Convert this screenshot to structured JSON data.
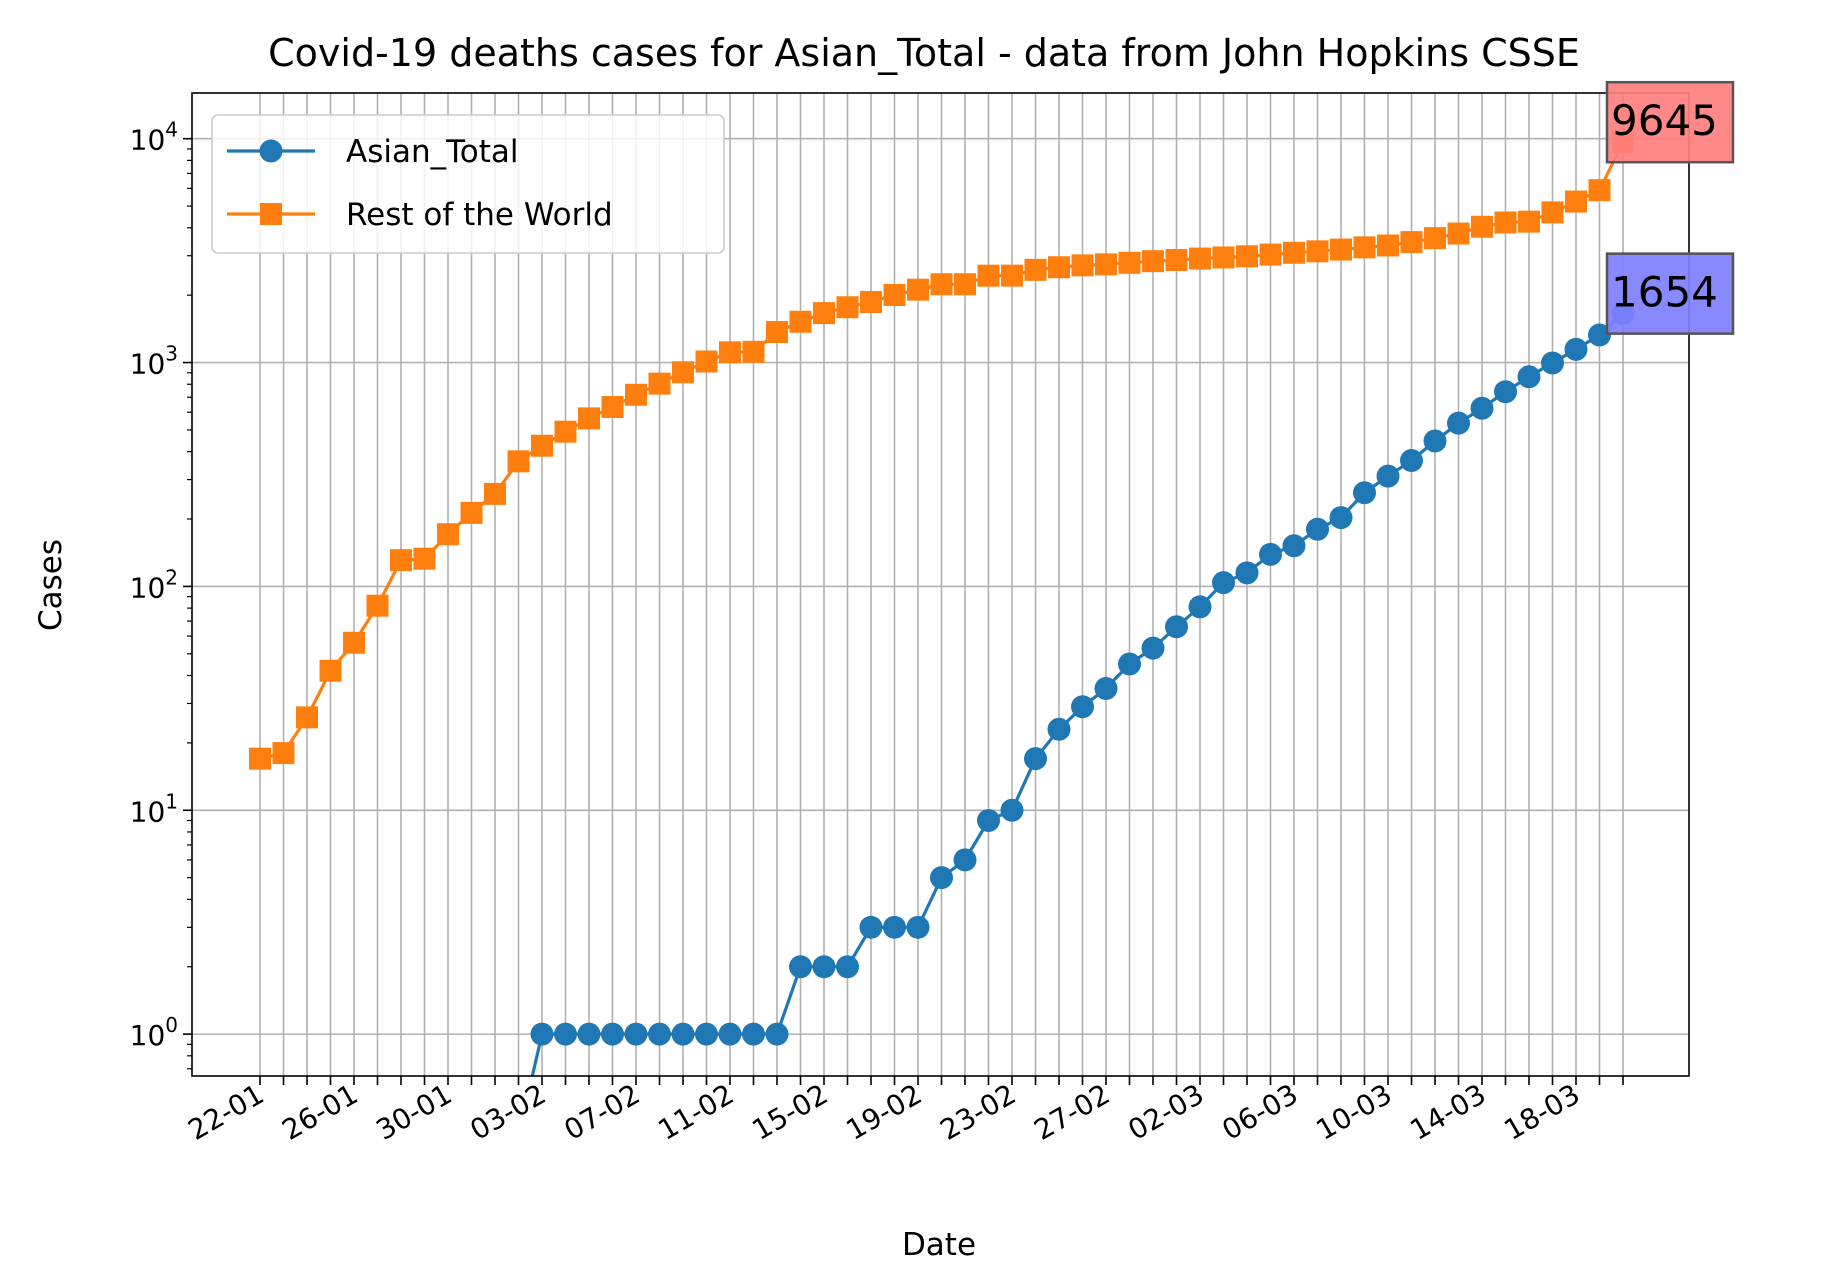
{
  "chart_data": {
    "type": "line",
    "title": "Covid-19 deaths cases for Asian_Total - data from John Hopkins CSSE",
    "xlabel": "Date",
    "ylabel": "Cases",
    "yscale": "log",
    "ylim": [
      0.65,
      16000
    ],
    "grid": true,
    "legend_position": "top-left",
    "x": [
      "22-01",
      "23-01",
      "24-01",
      "25-01",
      "26-01",
      "27-01",
      "28-01",
      "29-01",
      "30-01",
      "31-01",
      "01-02",
      "02-02",
      "03-02",
      "04-02",
      "05-02",
      "06-02",
      "07-02",
      "08-02",
      "09-02",
      "10-02",
      "11-02",
      "12-02",
      "13-02",
      "14-02",
      "15-02",
      "16-02",
      "17-02",
      "18-02",
      "19-02",
      "20-02",
      "21-02",
      "22-02",
      "23-02",
      "24-02",
      "25-02",
      "26-02",
      "27-02",
      "28-02",
      "29-02",
      "01-03",
      "02-03",
      "03-03",
      "04-03",
      "05-03",
      "06-03",
      "07-03",
      "08-03",
      "09-03",
      "10-03",
      "11-03",
      "12-03",
      "13-03",
      "14-03",
      "15-03",
      "16-03",
      "17-03",
      "18-03",
      "19-03",
      "20-03"
    ],
    "x_tick_labels": [
      "22-01",
      "26-01",
      "30-01",
      "03-02",
      "07-02",
      "11-02",
      "15-02",
      "19-02",
      "23-02",
      "27-02",
      "02-03",
      "06-03",
      "10-03",
      "14-03",
      "18-03"
    ],
    "y_ticks": [
      {
        "base": "10",
        "exp": "0",
        "value": 1
      },
      {
        "base": "10",
        "exp": "1",
        "value": 10
      },
      {
        "base": "10",
        "exp": "2",
        "value": 100
      },
      {
        "base": "10",
        "exp": "3",
        "value": 1000
      },
      {
        "base": "10",
        "exp": "4",
        "value": 10000
      }
    ],
    "series": [
      {
        "name": "Asian_Total",
        "color": "#1f77b4",
        "marker": "circle",
        "values": [
          0,
          0,
          0,
          0,
          0,
          0,
          0,
          0,
          0,
          0,
          0,
          0,
          1,
          1,
          1,
          1,
          1,
          1,
          1,
          1,
          1,
          1,
          1,
          2,
          2,
          2,
          3,
          3,
          3,
          5,
          6,
          9,
          10,
          17,
          23,
          29,
          35,
          45,
          53,
          66,
          81,
          104,
          115,
          139,
          152,
          180,
          203,
          262,
          311,
          365,
          446,
          536,
          625,
          741,
          864,
          996,
          1145,
          1328,
          1654
        ]
      },
      {
        "name": "Rest of the World",
        "color": "#ff7f0e",
        "marker": "square",
        "values": [
          17,
          18,
          26,
          42,
          56,
          82,
          131,
          133,
          171,
          213,
          259,
          362,
          425,
          491,
          563,
          633,
          718,
          805,
          905,
          1011,
          1111,
          1117,
          1369,
          1521,
          1663,
          1766,
          1864,
          2003,
          2116,
          2238,
          2238,
          2443,
          2445,
          2595,
          2665,
          2717,
          2746,
          2790,
          2837,
          2872,
          2914,
          2947,
          2983,
          3036,
          3093,
          3139,
          3197,
          3270,
          3334,
          3452,
          3595,
          3770,
          4043,
          4224,
          4260,
          4686,
          5240,
          5890,
          9645
        ]
      }
    ],
    "annotations": [
      {
        "text": "9645",
        "series": "Rest of the World",
        "box_color": "#ff7f7f"
      },
      {
        "text": "1654",
        "series": "Asian_Total",
        "box_color": "#7f7fff"
      }
    ]
  }
}
